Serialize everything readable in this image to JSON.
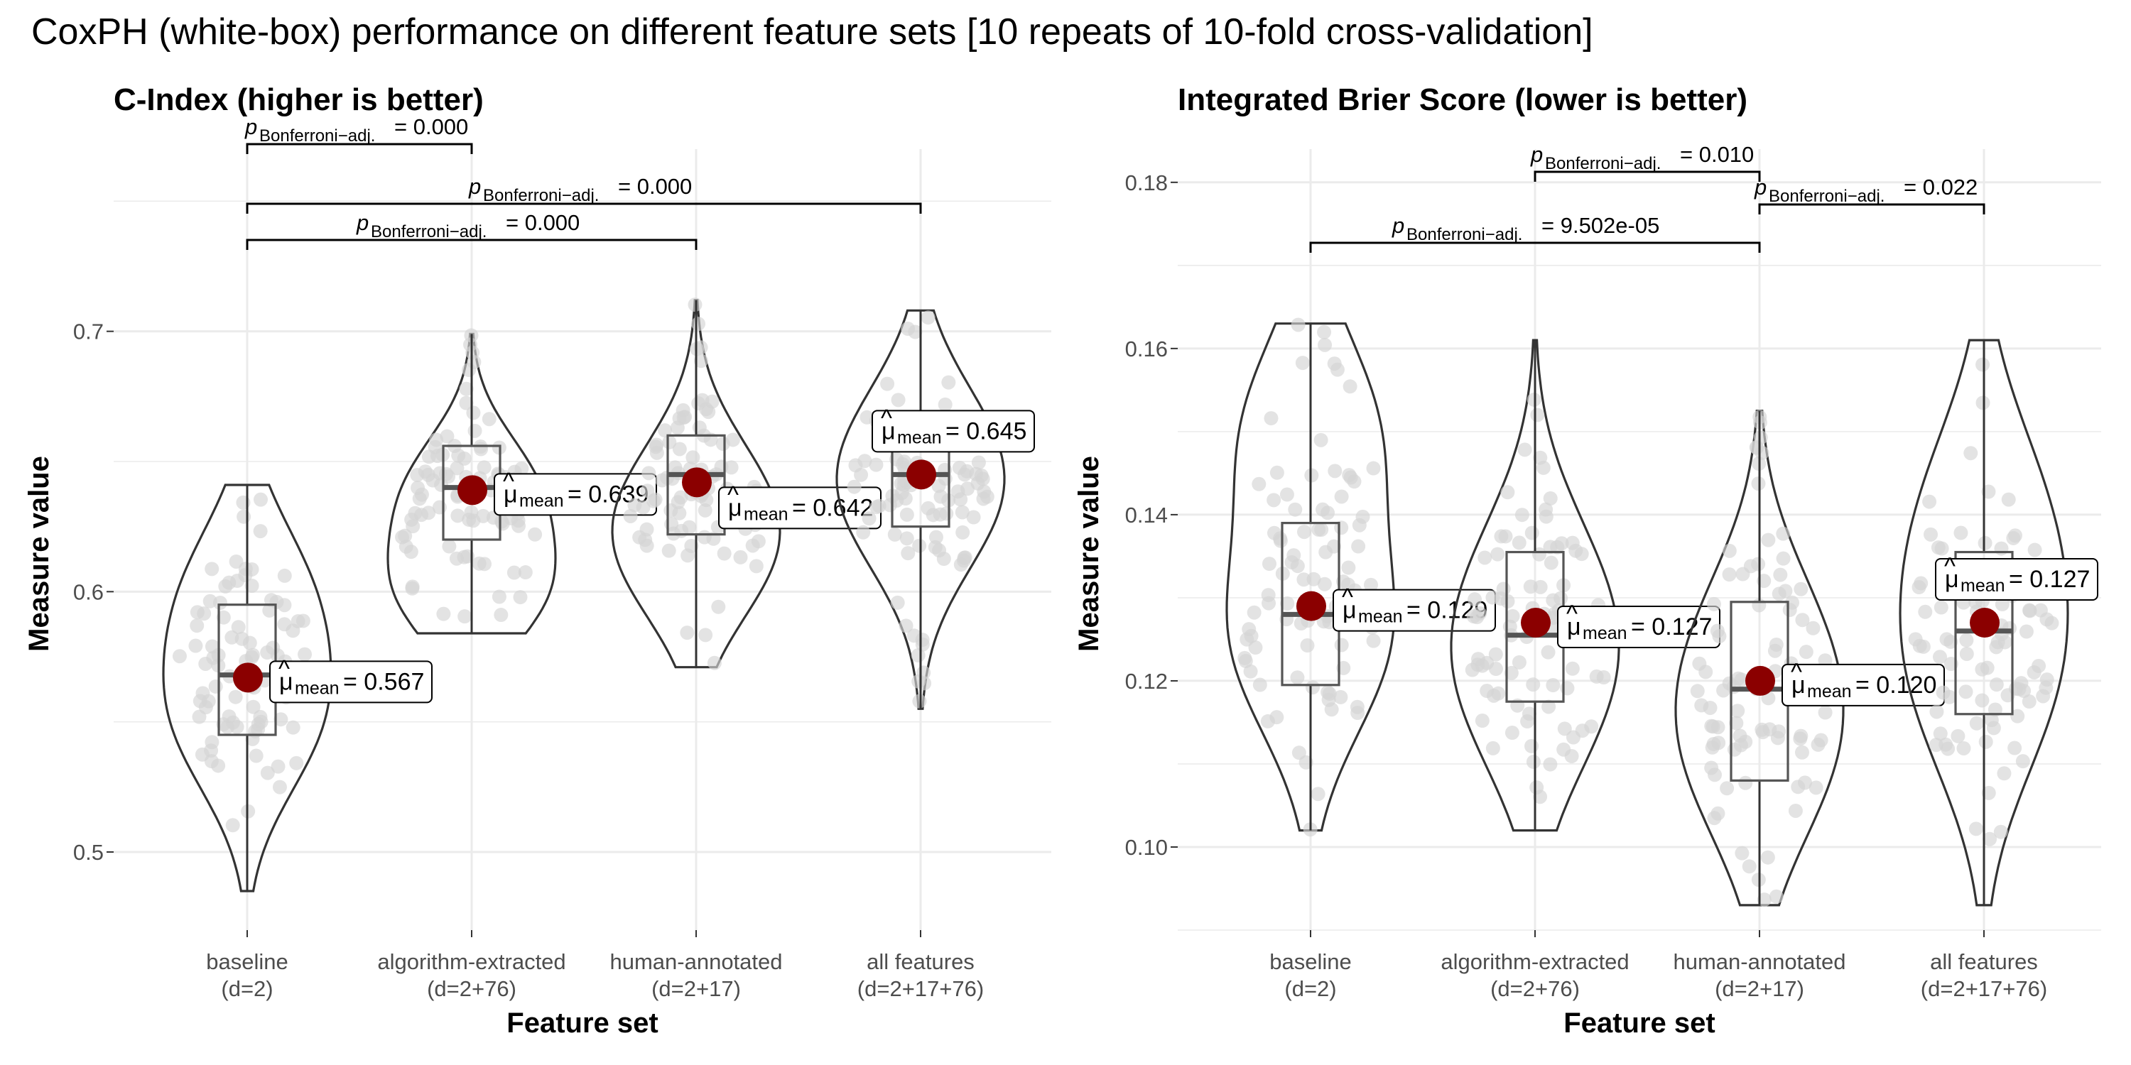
{
  "title": "CoxPH (white-box) performance on different feature sets [10 repeats of 10-fold cross-validation]",
  "colors": {
    "mean_point": "#8b0000",
    "jitter": "#d9d9d9",
    "outline": "#333333",
    "grid": "#ebebeb"
  },
  "chart_data": [
    {
      "type": "violin",
      "title": "C-Index (higher is better)",
      "xlabel": "Feature set",
      "ylabel": "Measure value",
      "ylim": [
        0.47,
        0.77
      ],
      "yticks": [
        "0.5",
        "0.6",
        "0.7"
      ],
      "grid": true,
      "categories": [
        {
          "name": "baseline",
          "sub": "(d=2)",
          "min": 0.485,
          "q1": 0.545,
          "median": 0.568,
          "q3": 0.595,
          "max": 0.641,
          "mean": 0.567,
          "mean_label": "0.567"
        },
        {
          "name": "algorithm-extracted",
          "sub": "(d=2+76)",
          "min": 0.584,
          "q1": 0.62,
          "median": 0.64,
          "q3": 0.656,
          "max": 0.699,
          "mean": 0.639,
          "mean_label": "0.639"
        },
        {
          "name": "human-annotated",
          "sub": "(d=2+17)",
          "min": 0.571,
          "q1": 0.622,
          "median": 0.645,
          "q3": 0.66,
          "max": 0.712,
          "mean": 0.642,
          "mean_label": "0.642"
        },
        {
          "name": "all features",
          "sub": "(d=2+17+76)",
          "min": 0.555,
          "q1": 0.625,
          "median": 0.645,
          "q3": 0.66,
          "max": 0.708,
          "mean": 0.645,
          "mean_label": "0.645"
        }
      ],
      "comparisons": [
        {
          "groups": [
            "baseline",
            "algorithm-extracted"
          ],
          "p": "0.000"
        },
        {
          "groups": [
            "baseline",
            "all features"
          ],
          "p": "0.000"
        },
        {
          "groups": [
            "baseline",
            "human-annotated"
          ],
          "p": "0.000"
        }
      ]
    },
    {
      "type": "violin",
      "title": "Integrated Brier Score (lower is better)",
      "xlabel": "Feature set",
      "ylabel": "Measure value",
      "ylim": [
        0.09,
        0.184
      ],
      "yticks": [
        "0.10",
        "0.12",
        "0.14",
        "0.16",
        "0.18"
      ],
      "grid": true,
      "categories": [
        {
          "name": "baseline",
          "sub": "(d=2)",
          "min": 0.102,
          "q1": 0.1195,
          "median": 0.128,
          "q3": 0.139,
          "max": 0.163,
          "mean": 0.129,
          "mean_label": "0.129"
        },
        {
          "name": "algorithm-extracted",
          "sub": "(d=2+76)",
          "min": 0.102,
          "q1": 0.1175,
          "median": 0.1255,
          "q3": 0.1355,
          "max": 0.161,
          "mean": 0.127,
          "mean_label": "0.127"
        },
        {
          "name": "human-annotated",
          "sub": "(d=2+17)",
          "min": 0.093,
          "q1": 0.108,
          "median": 0.119,
          "q3": 0.1295,
          "max": 0.1525,
          "mean": 0.12,
          "mean_label": "0.120"
        },
        {
          "name": "all features",
          "sub": "(d=2+17+76)",
          "min": 0.093,
          "q1": 0.116,
          "median": 0.126,
          "q3": 0.1355,
          "max": 0.161,
          "mean": 0.127,
          "mean_label": "0.127"
        }
      ],
      "comparisons": [
        {
          "groups": [
            "algorithm-extracted",
            "human-annotated"
          ],
          "p": "0.010"
        },
        {
          "groups": [
            "human-annotated",
            "all features"
          ],
          "p": "0.022"
        },
        {
          "groups": [
            "baseline",
            "human-annotated"
          ],
          "p": "9.502e-05"
        }
      ]
    }
  ],
  "labels": {
    "mean_symbol": "μ",
    "mean_subscript": "mean",
    "p_symbol": "p",
    "p_subscript": "Bonferroni−adj.",
    "equals": " = "
  }
}
